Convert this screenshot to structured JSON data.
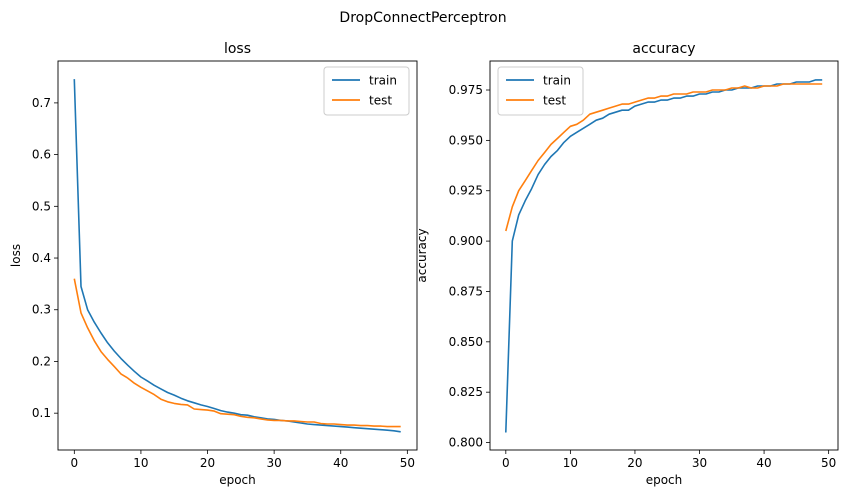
{
  "suptitle": "DropConnectPerceptron",
  "chart_data": [
    {
      "type": "line",
      "title": "loss",
      "xlabel": "epoch",
      "ylabel": "loss",
      "xlim": [
        -2.45,
        51.45
      ],
      "ylim": [
        0.0288,
        0.781
      ],
      "xticks": [
        0,
        10,
        20,
        30,
        40,
        50
      ],
      "xtick_labels": [
        "0",
        "10",
        "20",
        "30",
        "40",
        "50"
      ],
      "yticks": [
        0.1,
        0.2,
        0.3,
        0.4,
        0.5,
        0.6,
        0.7
      ],
      "ytick_labels": [
        "0.1",
        "0.2",
        "0.3",
        "0.4",
        "0.5",
        "0.6",
        "0.7"
      ],
      "grid": false,
      "legend": "top-right",
      "x": [
        0,
        1,
        2,
        3,
        4,
        5,
        6,
        7,
        8,
        9,
        10,
        11,
        12,
        13,
        14,
        15,
        16,
        17,
        18,
        19,
        20,
        21,
        22,
        23,
        24,
        25,
        26,
        27,
        28,
        29,
        30,
        31,
        32,
        33,
        34,
        35,
        36,
        37,
        38,
        39,
        40,
        41,
        42,
        43,
        44,
        45,
        46,
        47,
        48,
        49
      ],
      "series": [
        {
          "name": "train",
          "color": "#1f77b4",
          "values": [
            0.746,
            0.345,
            0.3,
            0.276,
            0.255,
            0.236,
            0.22,
            0.206,
            0.193,
            0.181,
            0.17,
            0.162,
            0.154,
            0.147,
            0.14,
            0.135,
            0.129,
            0.124,
            0.12,
            0.116,
            0.113,
            0.109,
            0.105,
            0.102,
            0.1,
            0.097,
            0.096,
            0.093,
            0.091,
            0.089,
            0.088,
            0.086,
            0.085,
            0.083,
            0.081,
            0.079,
            0.078,
            0.077,
            0.076,
            0.075,
            0.074,
            0.073,
            0.072,
            0.071,
            0.07,
            0.069,
            0.068,
            0.067,
            0.066,
            0.064
          ]
        },
        {
          "name": "test",
          "color": "#ff7f0e",
          "values": [
            0.36,
            0.294,
            0.265,
            0.24,
            0.219,
            0.204,
            0.19,
            0.176,
            0.168,
            0.158,
            0.15,
            0.143,
            0.136,
            0.127,
            0.122,
            0.119,
            0.117,
            0.116,
            0.108,
            0.107,
            0.106,
            0.104,
            0.099,
            0.098,
            0.097,
            0.094,
            0.092,
            0.091,
            0.089,
            0.087,
            0.086,
            0.086,
            0.085,
            0.085,
            0.084,
            0.083,
            0.083,
            0.08,
            0.079,
            0.079,
            0.078,
            0.077,
            0.077,
            0.076,
            0.076,
            0.075,
            0.075,
            0.074,
            0.074,
            0.074
          ]
        }
      ]
    },
    {
      "type": "line",
      "title": "accuracy",
      "xlabel": "epoch",
      "ylabel": "accuracy",
      "xlim": [
        -2.45,
        51.45
      ],
      "ylim": [
        0.7963,
        0.9894
      ],
      "xticks": [
        0,
        10,
        20,
        30,
        40,
        50
      ],
      "xtick_labels": [
        "0",
        "10",
        "20",
        "30",
        "40",
        "50"
      ],
      "yticks": [
        0.8,
        0.825,
        0.85,
        0.875,
        0.9,
        0.925,
        0.95,
        0.975
      ],
      "ytick_labels": [
        "0.800",
        "0.825",
        "0.850",
        "0.875",
        "0.900",
        "0.925",
        "0.950",
        "0.975"
      ],
      "grid": false,
      "legend": "top-left",
      "x": [
        0,
        1,
        2,
        3,
        4,
        5,
        6,
        7,
        8,
        9,
        10,
        11,
        12,
        13,
        14,
        15,
        16,
        17,
        18,
        19,
        20,
        21,
        22,
        23,
        24,
        25,
        26,
        27,
        28,
        29,
        30,
        31,
        32,
        33,
        34,
        35,
        36,
        37,
        38,
        39,
        40,
        41,
        42,
        43,
        44,
        45,
        46,
        47,
        48,
        49
      ],
      "series": [
        {
          "name": "train",
          "color": "#1f77b4",
          "values": [
            0.805,
            0.9,
            0.913,
            0.92,
            0.926,
            0.933,
            0.938,
            0.942,
            0.945,
            0.949,
            0.952,
            0.954,
            0.956,
            0.958,
            0.96,
            0.961,
            0.963,
            0.964,
            0.965,
            0.965,
            0.967,
            0.968,
            0.969,
            0.969,
            0.97,
            0.97,
            0.971,
            0.971,
            0.972,
            0.972,
            0.973,
            0.973,
            0.974,
            0.974,
            0.975,
            0.975,
            0.976,
            0.976,
            0.976,
            0.977,
            0.977,
            0.977,
            0.978,
            0.978,
            0.978,
            0.979,
            0.979,
            0.979,
            0.98,
            0.98
          ]
        },
        {
          "name": "test",
          "color": "#ff7f0e",
          "values": [
            0.905,
            0.917,
            0.925,
            0.93,
            0.935,
            0.94,
            0.944,
            0.948,
            0.951,
            0.954,
            0.957,
            0.958,
            0.96,
            0.963,
            0.964,
            0.965,
            0.966,
            0.967,
            0.968,
            0.968,
            0.969,
            0.97,
            0.971,
            0.971,
            0.972,
            0.972,
            0.973,
            0.973,
            0.973,
            0.974,
            0.974,
            0.974,
            0.975,
            0.975,
            0.975,
            0.976,
            0.976,
            0.977,
            0.976,
            0.976,
            0.977,
            0.977,
            0.977,
            0.978,
            0.978,
            0.978,
            0.978,
            0.978,
            0.978,
            0.978
          ]
        }
      ]
    }
  ]
}
